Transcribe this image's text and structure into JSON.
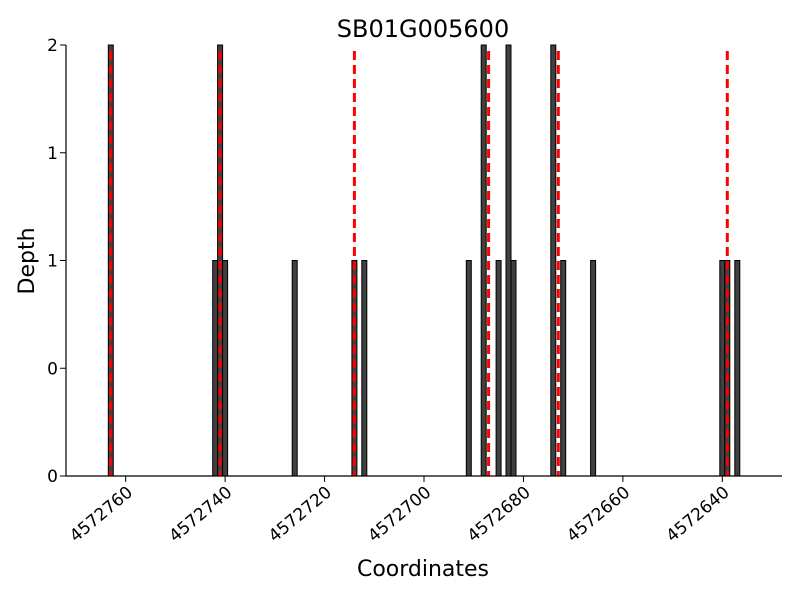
{
  "chart_data": {
    "type": "bar",
    "title": "SB01G005600",
    "xlabel": "Coordinates",
    "ylabel": "Depth",
    "x_reversed": true,
    "xlim": [
      4572772,
      4572628
    ],
    "ylim": [
      0,
      2
    ],
    "xticks": [
      4572760,
      4572740,
      4572720,
      4572700,
      4572680,
      4572660,
      4572640
    ],
    "yticks": [
      {
        "value": 0,
        "label": "0"
      },
      {
        "value": 0.5,
        "label": "0"
      },
      {
        "value": 1,
        "label": "1"
      },
      {
        "value": 1.5,
        "label": "1"
      },
      {
        "value": 2,
        "label": "2"
      }
    ],
    "bars": [
      {
        "x": 4572763,
        "depth": 2
      },
      {
        "x": 4572742,
        "depth": 1
      },
      {
        "x": 4572741,
        "depth": 2
      },
      {
        "x": 4572740,
        "depth": 1
      },
      {
        "x": 4572726,
        "depth": 1
      },
      {
        "x": 4572714,
        "depth": 1
      },
      {
        "x": 4572712,
        "depth": 1
      },
      {
        "x": 4572691,
        "depth": 1
      },
      {
        "x": 4572688,
        "depth": 2
      },
      {
        "x": 4572685,
        "depth": 1
      },
      {
        "x": 4572683,
        "depth": 2
      },
      {
        "x": 4572682,
        "depth": 1
      },
      {
        "x": 4572674,
        "depth": 2
      },
      {
        "x": 4572672,
        "depth": 1
      },
      {
        "x": 4572666,
        "depth": 1
      },
      {
        "x": 4572640,
        "depth": 1
      },
      {
        "x": 4572639,
        "depth": 1
      },
      {
        "x": 4572637,
        "depth": 1
      }
    ],
    "reference_lines": [
      4572763,
      4572741,
      4572714,
      4572687,
      4572673,
      4572639
    ],
    "reference_line_color": "#ff0000",
    "bar_color": "#404040",
    "grid": false
  }
}
